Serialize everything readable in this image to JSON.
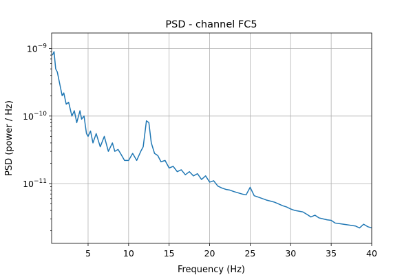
{
  "chart_data": {
    "type": "line",
    "title": "PSD - channel FC5",
    "xlabel": "Frequency (Hz)",
    "ylabel": "PSD (power / Hz)",
    "xlim": [
      0.5,
      40
    ],
    "ylim": [
      1.3e-12,
      1.7e-09
    ],
    "yscale": "log",
    "grid": true,
    "x_ticks": [
      5,
      10,
      15,
      20,
      25,
      30,
      35,
      40
    ],
    "y_ticks": [
      {
        "value": 1e-09,
        "base": "10",
        "exp": "−9"
      },
      {
        "value": 1e-10,
        "base": "10",
        "exp": "−10"
      },
      {
        "value": 1e-11,
        "base": "10",
        "exp": "−11"
      }
    ],
    "line_color": "#1f77b4",
    "series": [
      {
        "x": [
          0.6,
          0.8,
          1.0,
          1.2,
          1.5,
          1.8,
          2.0,
          2.3,
          2.6,
          3.0,
          3.3,
          3.6,
          4.0,
          4.2,
          4.5,
          4.8,
          5.0,
          5.3,
          5.6,
          6.0,
          6.5,
          7.0,
          7.5,
          8.0,
          8.3,
          8.7,
          9.0,
          9.5,
          10.0,
          10.5,
          11.0,
          11.5,
          11.8,
          12.2,
          12.5,
          12.8,
          13.2,
          13.6,
          14.0,
          14.5,
          15.0,
          15.5,
          16.0,
          16.5,
          17.0,
          17.5,
          18.0,
          18.5,
          19.0,
          19.5,
          20.0,
          20.5,
          21.0,
          21.5,
          22.0,
          22.5,
          23.0,
          23.5,
          24.0,
          24.5,
          25.0,
          25.5,
          26.0,
          26.5,
          27.0,
          27.5,
          28.0,
          28.5,
          29.0,
          29.5,
          30.0,
          30.5,
          31.0,
          31.5,
          32.0,
          32.5,
          33.0,
          33.5,
          34.0,
          34.5,
          35.0,
          35.5,
          36.0,
          36.5,
          37.0,
          37.5,
          38.0,
          38.5,
          39.0,
          39.5,
          40.0
        ],
        "y": [
          8e-10,
          9e-10,
          5e-10,
          4.5e-10,
          3e-10,
          2e-10,
          2.2e-10,
          1.5e-10,
          1.6e-10,
          1e-10,
          1.2e-10,
          8e-11,
          1.2e-10,
          9e-11,
          1e-10,
          5.5e-11,
          5e-11,
          6e-11,
          4e-11,
          5.5e-11,
          3.5e-11,
          5e-11,
          3e-11,
          4e-11,
          3e-11,
          3.2e-11,
          2.8e-11,
          2.2e-11,
          2.2e-11,
          2.8e-11,
          2.2e-11,
          3e-11,
          3.5e-11,
          8.5e-11,
          8e-11,
          4e-11,
          2.8e-11,
          2.6e-11,
          2.1e-11,
          2.2e-11,
          1.7e-11,
          1.8e-11,
          1.5e-11,
          1.6e-11,
          1.35e-11,
          1.5e-11,
          1.3e-11,
          1.4e-11,
          1.15e-11,
          1.3e-11,
          1.05e-11,
          1.1e-11,
          9.2e-12,
          8.6e-12,
          8.2e-12,
          8e-12,
          7.6e-12,
          7.3e-12,
          7e-12,
          6.8e-12,
          8.8e-12,
          6.6e-12,
          6.3e-12,
          6e-12,
          5.7e-12,
          5.5e-12,
          5.3e-12,
          5e-12,
          4.7e-12,
          4.5e-12,
          4.2e-12,
          4e-12,
          3.9e-12,
          3.8e-12,
          3.5e-12,
          3.2e-12,
          3.4e-12,
          3.1e-12,
          3e-12,
          2.9e-12,
          2.85e-12,
          2.6e-12,
          2.55e-12,
          2.5e-12,
          2.45e-12,
          2.4e-12,
          2.35e-12,
          2.2e-12,
          2.5e-12,
          2.3e-12,
          2.2e-12
        ]
      }
    ]
  }
}
